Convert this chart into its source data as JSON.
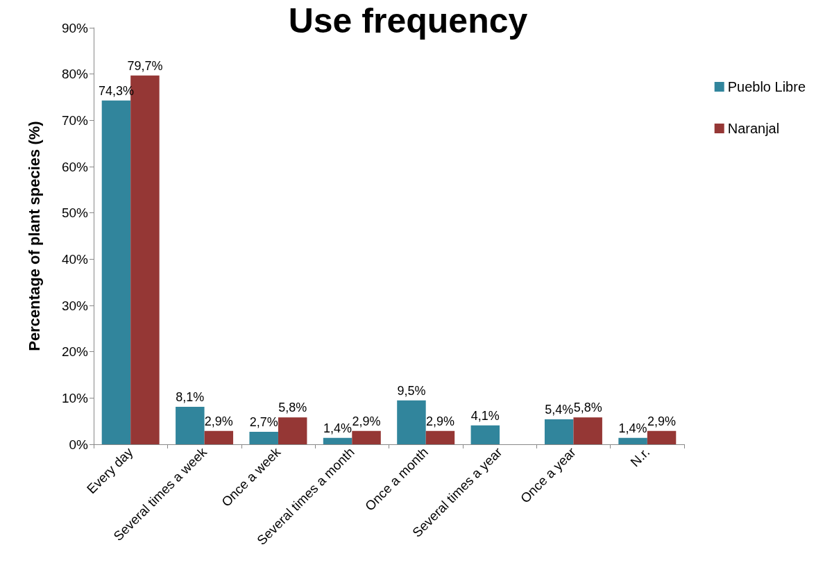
{
  "chart_data": {
    "type": "bar",
    "title": "Use frequency",
    "ylabel": "Percentage of plant species (%)",
    "categories": [
      "Every day",
      "Several times a week",
      "Once a week",
      "Several times a month",
      "Once a month",
      "Several times a year",
      "Once a year",
      "N.r."
    ],
    "series": [
      {
        "name": "Pueblo Libre",
        "color": "#31859c",
        "values": [
          74.3,
          8.1,
          2.7,
          1.4,
          9.5,
          4.1,
          5.4,
          1.4
        ],
        "value_labels": [
          "74,3%",
          "8,1%",
          "2,7%",
          "1,4%",
          "9,5%",
          "4,1%",
          "5,4%",
          "1,4%"
        ]
      },
      {
        "name": "Naranjal",
        "color": "#953735",
        "values": [
          79.7,
          2.9,
          5.8,
          2.9,
          2.9,
          null,
          5.8,
          2.9
        ],
        "value_labels": [
          "79,7%",
          "2,9%",
          "5,8%",
          "2,9%",
          "2,9%",
          null,
          "5,8%",
          "2,9%"
        ]
      }
    ],
    "ylim": [
      0,
      90
    ],
    "yticks": [
      {
        "value": 0,
        "label": "0%"
      },
      {
        "value": 10,
        "label": "10%"
      },
      {
        "value": 20,
        "label": "20%"
      },
      {
        "value": 30,
        "label": "30%"
      },
      {
        "value": 40,
        "label": "40%"
      },
      {
        "value": 50,
        "label": "50%"
      },
      {
        "value": 60,
        "label": "60%"
      },
      {
        "value": 70,
        "label": "70%"
      },
      {
        "value": 80,
        "label": "80%"
      },
      {
        "value": 90,
        "label": "90%"
      }
    ],
    "grid": false,
    "legend": "right"
  }
}
